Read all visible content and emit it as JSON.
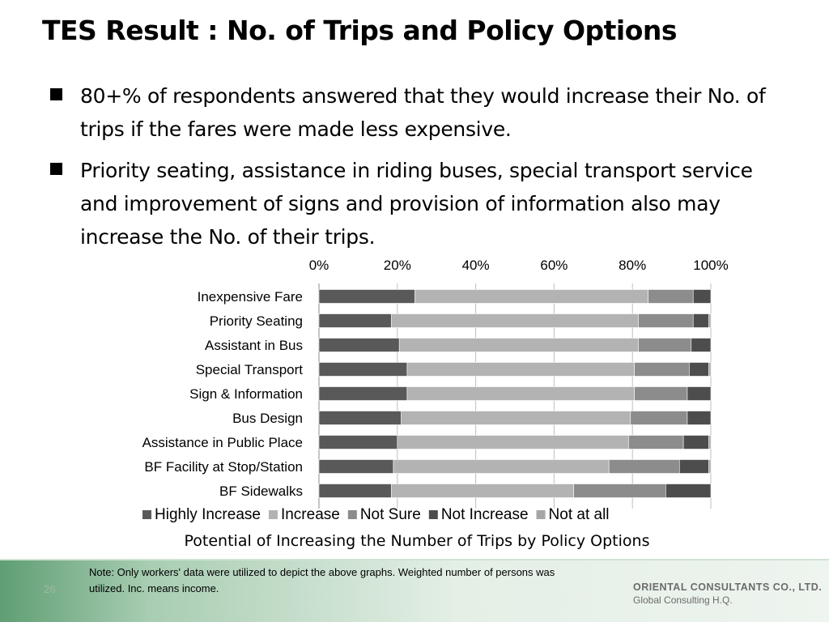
{
  "slide": {
    "title": "TES Result : No. of Trips and Policy Options",
    "bullets": [
      "80+% of respondents answered that they would increase their No. of trips if the fares were made less expensive.",
      "Priority seating, assistance in riding buses, special transport service and improvement of signs and provision of information also may increase the No. of their trips."
    ],
    "page_number": "26",
    "note": "Note: Only workers' data were utilized to depict the above graphs. Weighted number of persons was utilized. Inc. means income.",
    "logo_name": "ORIENTAL CONSULTANTS CO., LTD.",
    "logo_sub": "Global Consulting H.Q."
  },
  "chart_data": {
    "type": "bar",
    "orientation": "horizontal",
    "stacked": "percent",
    "title": "Potential of Increasing the Number of Trips by Policy Options",
    "categories": [
      "Inexpensive Fare",
      "Priority Seating",
      "Assistant in Bus",
      "Special Transport",
      "Sign & Information",
      "Bus Design",
      "Assistance in Public Place",
      "BF Facility at Stop/Station",
      "BF Sidewalks"
    ],
    "series": [
      {
        "name": "Highly Increase",
        "color": "#595959",
        "values": [
          24.5,
          18.5,
          20.5,
          22.5,
          22.5,
          21,
          20,
          19,
          18.5
        ]
      },
      {
        "name": "Increase",
        "color": "#b3b3b3",
        "values": [
          59.5,
          63,
          61,
          58,
          58,
          58.5,
          59,
          55,
          46.5
        ]
      },
      {
        "name": "Not Sure",
        "color": "#8c8c8c",
        "values": [
          11.5,
          14,
          13.5,
          14,
          13.5,
          14.5,
          14,
          18,
          23.5
        ]
      },
      {
        "name": "Not Increase",
        "color": "#4d4d4d",
        "values": [
          4.5,
          4,
          5,
          5,
          6,
          6,
          6.5,
          7.5,
          11.5
        ]
      },
      {
        "name": "Not at all",
        "color": "#a6a6a6",
        "values": [
          0,
          0.5,
          0,
          0.5,
          0,
          0,
          0.5,
          0.5,
          0
        ]
      }
    ],
    "x_ticks": [
      "0%",
      "20%",
      "40%",
      "60%",
      "80%",
      "100%"
    ],
    "xlim": [
      0,
      100
    ],
    "x_axis_position": "top",
    "grid": "vertical",
    "legend": "bottom"
  }
}
